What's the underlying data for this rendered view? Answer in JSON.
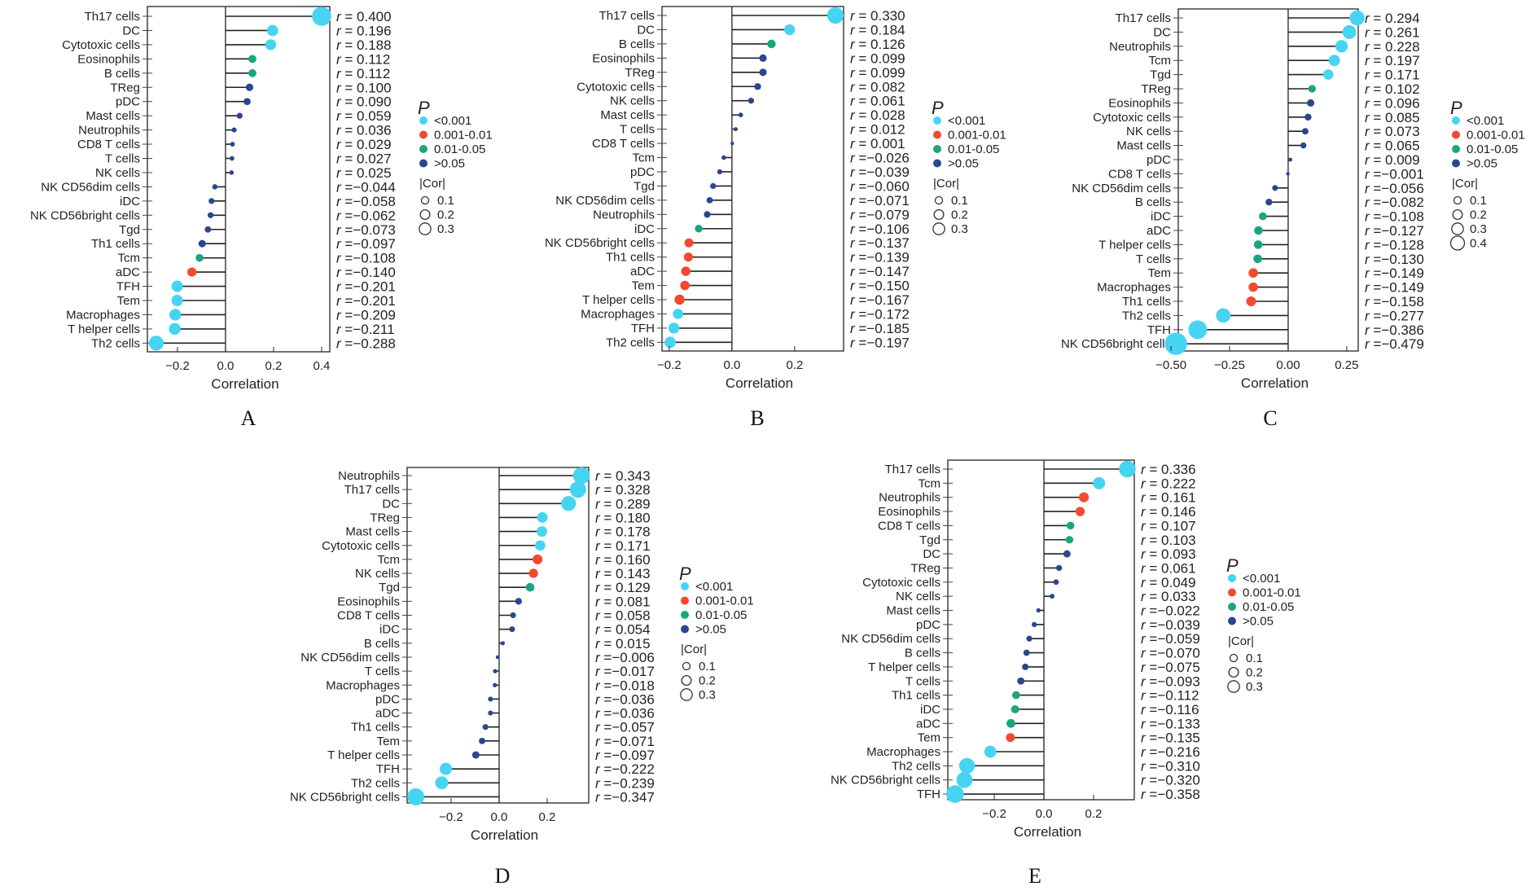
{
  "figure": {
    "axis_label": "Correlation",
    "r_prefix": "r",
    "legend": {
      "p_title": "P",
      "p_items": [
        {
          "label": "<0.001",
          "key": "p1",
          "color": "#47d4f2"
        },
        {
          "label": "0.001-0.01",
          "key": "p2",
          "color": "#f24a2e"
        },
        {
          "label": "0.01-0.05",
          "key": "p3",
          "color": "#1aa57f"
        },
        {
          "label": ">0.05",
          "key": "p4",
          "color": "#2a4690"
        }
      ],
      "cor_title": "|Cor|"
    }
  },
  "chart_data": [
    {
      "type": "lollipop",
      "panel": "A",
      "xlabel": "Correlation",
      "xlim": [
        -0.325,
        0.434
      ],
      "xticks": [
        -0.2,
        0.0,
        0.2,
        0.4
      ],
      "xtick_labels": [
        "−0.2",
        "0.0",
        "0.2",
        "0.4"
      ],
      "cor_legend": [
        "0.1",
        "0.2",
        "0.3"
      ],
      "categories": [
        "Th17 cells",
        "DC",
        "Cytotoxic cells",
        "Eosinophils",
        "B cells",
        "TReg",
        "pDC",
        "Mast cells",
        "Neutrophils",
        "CD8 T cells",
        "T cells",
        "NK cells",
        "NK CD56dim cells",
        "iDC",
        "NK CD56bright cells",
        "Tgd",
        "Th1 cells",
        "Tcm",
        "aDC",
        "TFH",
        "Tem",
        "Macrophages",
        "T helper cells",
        "Th2 cells"
      ],
      "values": [
        0.4,
        0.196,
        0.188,
        0.112,
        0.112,
        0.1,
        0.09,
        0.059,
        0.036,
        0.029,
        0.027,
        0.025,
        -0.044,
        -0.058,
        -0.062,
        -0.073,
        -0.097,
        -0.108,
        -0.14,
        -0.201,
        -0.201,
        -0.209,
        -0.211,
        -0.288
      ],
      "value_labels": [
        "0.400",
        "0.196",
        "0.188",
        "0.112",
        "0.112",
        "0.100",
        "0.090",
        "0.059",
        "0.036",
        "0.029",
        "0.027",
        "0.025",
        "−0.044",
        "−0.058",
        "−0.062",
        "−0.073",
        "−0.097",
        "−0.108",
        "−0.140",
        "−0.201",
        "−0.201",
        "−0.209",
        "−0.211",
        "−0.288"
      ],
      "p_group": [
        "p1",
        "p1",
        "p1",
        "p3",
        "p3",
        "p4",
        "p4",
        "p4",
        "p4",
        "p4",
        "p4",
        "p4",
        "p4",
        "p4",
        "p4",
        "p4",
        "p4",
        "p3",
        "p2",
        "p1",
        "p1",
        "p1",
        "p1",
        "p1"
      ]
    },
    {
      "type": "lollipop",
      "panel": "B",
      "xlabel": "Correlation",
      "xlim": [
        -0.223,
        0.356
      ],
      "xticks": [
        -0.2,
        0.0,
        0.2
      ],
      "xtick_labels": [
        "−0.2",
        "0.0",
        "0.2"
      ],
      "cor_legend": [
        "0.1",
        "0.2",
        "0.3"
      ],
      "categories": [
        "Th17 cells",
        "DC",
        "B cells",
        "Eosinophils",
        "TReg",
        "Cytotoxic cells",
        "NK cells",
        "Mast cells",
        "T cells",
        "CD8 T cells",
        "Tcm",
        "pDC",
        "Tgd",
        "NK CD56dim cells",
        "Neutrophils",
        "iDC",
        "NK CD56bright cells",
        "Th1 cells",
        "aDC",
        "Tem",
        "T helper cells",
        "Macrophages",
        "TFH",
        "Th2 cells"
      ],
      "values": [
        0.33,
        0.184,
        0.126,
        0.099,
        0.099,
        0.082,
        0.061,
        0.028,
        0.012,
        0.001,
        -0.026,
        -0.039,
        -0.06,
        -0.071,
        -0.079,
        -0.106,
        -0.137,
        -0.139,
        -0.147,
        -0.15,
        -0.167,
        -0.172,
        -0.185,
        -0.197
      ],
      "value_labels": [
        "0.330",
        "0.184",
        "0.126",
        "0.099",
        "0.099",
        "0.082",
        "0.061",
        "0.028",
        "0.012",
        "0.001",
        "−0.026",
        "−0.039",
        "−0.060",
        "−0.071",
        "−0.079",
        "−0.106",
        "−0.137",
        "−0.139",
        "−0.147",
        "−0.150",
        "−0.167",
        "−0.172",
        "−0.185",
        "−0.197"
      ],
      "p_group": [
        "p1",
        "p1",
        "p3",
        "p4",
        "p4",
        "p4",
        "p4",
        "p4",
        "p4",
        "p4",
        "p4",
        "p4",
        "p4",
        "p4",
        "p4",
        "p3",
        "p2",
        "p2",
        "p2",
        "p2",
        "p2",
        "p1",
        "p1",
        "p1"
      ]
    },
    {
      "type": "lollipop",
      "panel": "C",
      "xlabel": "Correlation",
      "xlim": [
        -0.469,
        0.299
      ],
      "xticks": [
        -0.5,
        -0.25,
        0.0,
        0.25
      ],
      "xtick_labels": [
        "−0.50",
        "−0.25",
        "0.00",
        "0.25"
      ],
      "cor_legend": [
        "0.1",
        "0.2",
        "0.3",
        "0.4"
      ],
      "categories": [
        "Th17 cells",
        "DC",
        "Neutrophils",
        "Tcm",
        "Tgd",
        "TReg",
        "Eosinophils",
        "Cytotoxic cells",
        "NK cells",
        "Mast cells",
        "pDC",
        "CD8 T cells",
        "NK CD56dim cells",
        "B cells",
        "iDC",
        "aDC",
        "T helper cells",
        "T cells",
        "Tem",
        "Macrophages",
        "Th1 cells",
        "Th2 cells",
        "TFH",
        "NK CD56bright cells"
      ],
      "values": [
        0.294,
        0.261,
        0.228,
        0.197,
        0.171,
        0.102,
        0.096,
        0.085,
        0.073,
        0.065,
        0.009,
        -0.001,
        -0.056,
        -0.082,
        -0.108,
        -0.127,
        -0.128,
        -0.13,
        -0.149,
        -0.149,
        -0.158,
        -0.277,
        -0.386,
        -0.479
      ],
      "value_labels": [
        "0.294",
        "0.261",
        "0.228",
        "0.197",
        "0.171",
        "0.102",
        "0.096",
        "0.085",
        "0.073",
        "0.065",
        "0.009",
        "−0.001",
        "−0.056",
        "−0.082",
        "−0.108",
        "−0.127",
        "−0.128",
        "−0.130",
        "−0.149",
        "−0.149",
        "−0.158",
        "−0.277",
        "−0.386",
        "−0.479"
      ],
      "p_group": [
        "p1",
        "p1",
        "p1",
        "p1",
        "p1",
        "p3",
        "p4",
        "p4",
        "p4",
        "p4",
        "p4",
        "p4",
        "p4",
        "p4",
        "p3",
        "p3",
        "p3",
        "p3",
        "p2",
        "p2",
        "p2",
        "p1",
        "p1",
        "p1"
      ]
    },
    {
      "type": "lollipop",
      "panel": "D",
      "xlabel": "Correlation",
      "xlim": [
        -0.383,
        0.373
      ],
      "xticks": [
        -0.2,
        0.0,
        0.2
      ],
      "xtick_labels": [
        "−0.2",
        "0.0",
        "0.2"
      ],
      "cor_legend": [
        "0.1",
        "0.2",
        "0.3"
      ],
      "categories": [
        "Neutrophils",
        "Th17 cells",
        "DC",
        "TReg",
        "Mast cells",
        "Cytotoxic cells",
        "Tcm",
        "NK cells",
        "Tgd",
        "Eosinophils",
        "CD8 T cells",
        "iDC",
        "B cells",
        "NK CD56dim cells",
        "T cells",
        "Macrophages",
        "pDC",
        "aDC",
        "Th1 cells",
        "Tem",
        "T helper cells",
        "TFH",
        "Th2 cells",
        "NK CD56bright cells"
      ],
      "values": [
        0.343,
        0.328,
        0.289,
        0.18,
        0.178,
        0.171,
        0.16,
        0.143,
        0.129,
        0.081,
        0.058,
        0.054,
        0.015,
        -0.006,
        -0.017,
        -0.018,
        -0.036,
        -0.036,
        -0.057,
        -0.071,
        -0.097,
        -0.222,
        -0.239,
        -0.347
      ],
      "value_labels": [
        "0.343",
        "0.328",
        "0.289",
        "0.180",
        "0.178",
        "0.171",
        "0.160",
        "0.143",
        "0.129",
        "0.081",
        "0.058",
        "0.054",
        "0.015",
        "−0.006",
        "−0.017",
        "−0.018",
        "−0.036",
        "−0.036",
        "−0.057",
        "−0.071",
        "−0.097",
        "−0.222",
        "−0.239",
        "−0.347"
      ],
      "p_group": [
        "p1",
        "p1",
        "p1",
        "p1",
        "p1",
        "p1",
        "p2",
        "p2",
        "p3",
        "p4",
        "p4",
        "p4",
        "p4",
        "p4",
        "p4",
        "p4",
        "p4",
        "p4",
        "p4",
        "p4",
        "p4",
        "p1",
        "p1",
        "p1"
      ]
    },
    {
      "type": "lollipop",
      "panel": "E",
      "xlabel": "Correlation",
      "xlim": [
        -0.387,
        0.364
      ],
      "xticks": [
        -0.2,
        0.0,
        0.2
      ],
      "xtick_labels": [
        "−0.2",
        "0.0",
        "0.2"
      ],
      "cor_legend": [
        "0.1",
        "0.2",
        "0.3"
      ],
      "categories": [
        "Th17 cells",
        "Tcm",
        "Neutrophils",
        "Eosinophils",
        "CD8 T cells",
        "Tgd",
        "DC",
        "TReg",
        "Cytotoxic cells",
        "NK cells",
        "Mast cells",
        "pDC",
        "NK CD56dim cells",
        "B cells",
        "T helper cells",
        "T cells",
        "Th1 cells",
        "iDC",
        "aDC",
        "Tem",
        "Macrophages",
        "Th2 cells",
        "NK CD56bright cells",
        "TFH"
      ],
      "values": [
        0.336,
        0.222,
        0.161,
        0.146,
        0.107,
        0.103,
        0.093,
        0.061,
        0.049,
        0.033,
        -0.022,
        -0.039,
        -0.059,
        -0.07,
        -0.075,
        -0.093,
        -0.112,
        -0.116,
        -0.133,
        -0.135,
        -0.216,
        -0.31,
        -0.32,
        -0.358
      ],
      "value_labels": [
        "0.336",
        "0.222",
        "0.161",
        "0.146",
        "0.107",
        "0.103",
        "0.093",
        "0.061",
        "0.049",
        "0.033",
        "−0.022",
        "−0.039",
        "−0.059",
        "−0.070",
        "−0.075",
        "−0.093",
        "−0.112",
        "−0.116",
        "−0.133",
        "−0.135",
        "−0.216",
        "−0.310",
        "−0.320",
        "−0.358"
      ],
      "p_group": [
        "p1",
        "p1",
        "p2",
        "p2",
        "p3",
        "p3",
        "p4",
        "p4",
        "p4",
        "p4",
        "p4",
        "p4",
        "p4",
        "p4",
        "p4",
        "p4",
        "p3",
        "p3",
        "p3",
        "p2",
        "p1",
        "p1",
        "p1",
        "p1"
      ]
    }
  ]
}
